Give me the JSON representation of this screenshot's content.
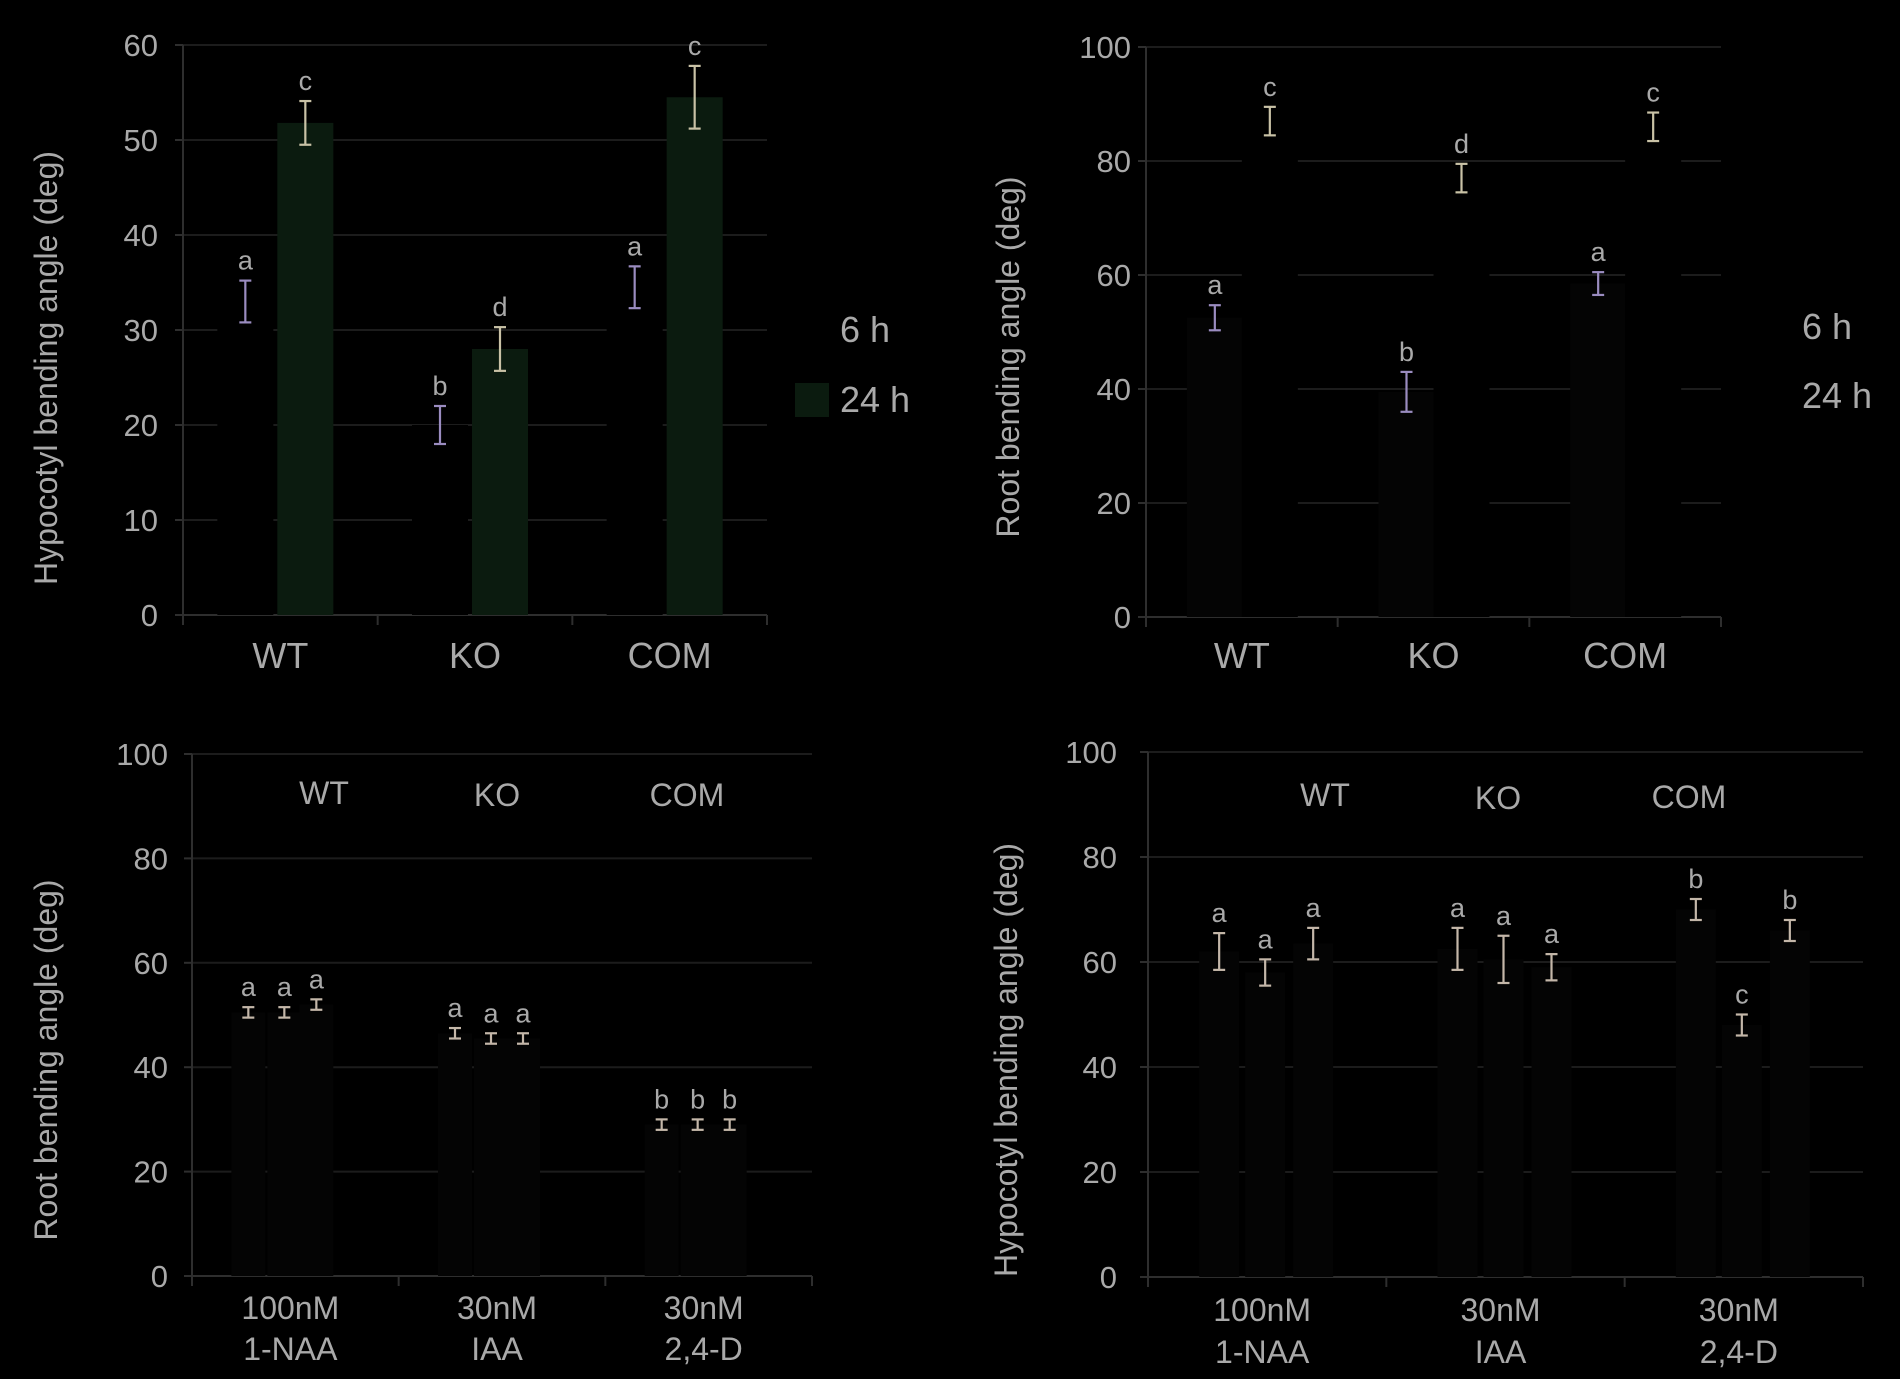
{
  "colors": {
    "background": "#000000",
    "text": "#a9a9a9",
    "grid": "#1c1c1c",
    "axis": "#2e2e2e",
    "bar_24h": "#0b1b0f",
    "bar_dark": "#040404",
    "err_6h": "#9a8cc0",
    "err_24h": "#c9c2a6",
    "err_C": "#c4b7a9"
  },
  "chart_data": [
    {
      "id": "A",
      "type": "bar",
      "ylabel": "Hypocotyl bending angle (deg)",
      "ylim": [
        0,
        60
      ],
      "yticks": [
        0,
        10,
        20,
        30,
        40,
        50,
        60
      ],
      "categories": [
        "WT",
        "KO",
        "COM"
      ],
      "legend": [
        "6 h",
        "24 h"
      ],
      "legend_position": "right",
      "series": [
        {
          "name": "6 h",
          "values": [
            33,
            20,
            34.5
          ],
          "errors": [
            2.2,
            2.0,
            2.2
          ],
          "letters": [
            "a",
            "b",
            "a"
          ],
          "bar_color": "#000000",
          "err_color": "#9a8cc0"
        },
        {
          "name": "24 h",
          "values": [
            51.8,
            28,
            54.5
          ],
          "errors": [
            2.3,
            2.3,
            3.3
          ],
          "letters": [
            "c",
            "d",
            "c"
          ],
          "bar_color": "#0b1b0f",
          "err_color": "#c9c2a6"
        }
      ],
      "grid": true
    },
    {
      "id": "B",
      "type": "bar",
      "ylabel": "Root bending angle (deg)",
      "ylim": [
        0,
        100
      ],
      "yticks": [
        0,
        20,
        40,
        60,
        80,
        100
      ],
      "categories": [
        "WT",
        "KO",
        "COM"
      ],
      "legend": [
        "6 h",
        "24 h"
      ],
      "legend_position": "right",
      "series": [
        {
          "name": "6 h",
          "values": [
            52.5,
            39.5,
            58.5
          ],
          "errors": [
            2.2,
            3.5,
            2.0
          ],
          "letters": [
            "a",
            "b",
            "a"
          ],
          "bar_color": "#040404",
          "err_color": "#9a8cc0"
        },
        {
          "name": "24 h",
          "values": [
            87,
            77,
            86
          ],
          "errors": [
            2.5,
            2.5,
            2.5
          ],
          "letters": [
            "c",
            "d",
            "c"
          ],
          "bar_color": "#000000",
          "err_color": "#c9c2a6"
        }
      ],
      "grid": true
    },
    {
      "id": "C",
      "type": "bar",
      "ylabel": "Root bending angle (deg)",
      "ylim": [
        0,
        100
      ],
      "yticks": [
        0,
        20,
        40,
        60,
        80,
        100
      ],
      "categories": [
        "100nM\n1-NAA",
        "30nM\nIAA",
        "30nM\n2,4-D"
      ],
      "legend": [
        "WT",
        "KO",
        "COM"
      ],
      "legend_position": "top",
      "series": [
        {
          "name": "WT",
          "values": [
            50.5,
            46.5,
            29
          ],
          "errors": [
            1,
            1,
            1
          ],
          "letters": [
            "a",
            "a",
            "b"
          ]
        },
        {
          "name": "KO",
          "values": [
            50.5,
            45.5,
            29
          ],
          "errors": [
            1,
            1,
            1
          ],
          "letters": [
            "a",
            "a",
            "b"
          ]
        },
        {
          "name": "COM",
          "values": [
            52,
            45.5,
            29
          ],
          "errors": [
            1,
            1,
            1
          ],
          "letters": [
            "a",
            "a",
            "b"
          ]
        }
      ],
      "grid": true
    },
    {
      "id": "D",
      "type": "bar",
      "ylabel": "Hypocotyl bending angle  (deg)",
      "ylim": [
        0,
        100
      ],
      "yticks": [
        0,
        20,
        40,
        60,
        80,
        100
      ],
      "categories": [
        "100nM\n1-NAA",
        "30nM\nIAA",
        "30nM\n2,4-D"
      ],
      "legend": [
        "WT",
        "KO",
        "COM"
      ],
      "legend_position": "top",
      "series": [
        {
          "name": "WT",
          "values": [
            62,
            62.5,
            70
          ],
          "errors": [
            3.5,
            4,
            2
          ],
          "letters": [
            "a",
            "a",
            "b"
          ]
        },
        {
          "name": "KO",
          "values": [
            58,
            60.5,
            48
          ],
          "errors": [
            2.5,
            4.5,
            2
          ],
          "letters": [
            "a",
            "a",
            "c"
          ]
        },
        {
          "name": "COM",
          "values": [
            63.5,
            59,
            66
          ],
          "errors": [
            3,
            2.5,
            2
          ],
          "letters": [
            "a",
            "a",
            "b"
          ]
        }
      ],
      "grid": true
    }
  ]
}
